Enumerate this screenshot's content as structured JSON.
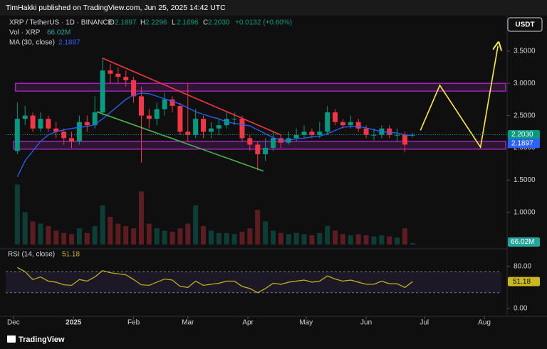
{
  "header": {
    "published": "TimHakki published on TradingView.com, Jun 25, 2025 14:42 UTC",
    "currency": "USDT",
    "brand": "TradingView"
  },
  "chart_data": {
    "type": "candlestick",
    "title": "XRP / TetherUS · 1D · BINANCE",
    "x": [
      "2024-12-03",
      "2024-12-07",
      "2024-12-11",
      "2024-12-15",
      "2024-12-19",
      "2024-12-23",
      "2024-12-27",
      "2024-12-31",
      "2025-01-04",
      "2025-01-08",
      "2025-01-12",
      "2025-01-16",
      "2025-01-20",
      "2025-01-24",
      "2025-01-28",
      "2025-02-01",
      "2025-02-05",
      "2025-02-09",
      "2025-02-13",
      "2025-02-17",
      "2025-02-21",
      "2025-02-25",
      "2025-03-01",
      "2025-03-05",
      "2025-03-09",
      "2025-03-13",
      "2025-03-17",
      "2025-03-21",
      "2025-03-25",
      "2025-03-29",
      "2025-04-02",
      "2025-04-06",
      "2025-04-10",
      "2025-04-14",
      "2025-04-18",
      "2025-04-22",
      "2025-04-26",
      "2025-04-30",
      "2025-05-04",
      "2025-05-08",
      "2025-05-12",
      "2025-05-16",
      "2025-05-20",
      "2025-05-24",
      "2025-05-28",
      "2025-06-01",
      "2025-06-05",
      "2025-06-09",
      "2025-06-13",
      "2025-06-17",
      "2025-06-21",
      "2025-06-25"
    ],
    "open": [
      1.95,
      2.45,
      2.5,
      2.3,
      2.45,
      2.3,
      2.25,
      2.15,
      2.1,
      2.4,
      2.35,
      2.55,
      3.2,
      3.15,
      3.1,
      3.05,
      2.8,
      2.5,
      2.45,
      2.6,
      2.75,
      2.65,
      2.25,
      2.2,
      2.45,
      2.25,
      2.3,
      2.35,
      2.45,
      2.45,
      2.15,
      2.05,
      1.9,
      2.0,
      2.15,
      2.08,
      2.15,
      2.2,
      2.25,
      2.2,
      2.25,
      2.55,
      2.4,
      2.35,
      2.4,
      2.3,
      2.2,
      2.2,
      2.3,
      2.2,
      2.2,
      2.1897
    ],
    "high": [
      2.7,
      2.65,
      2.55,
      2.55,
      2.5,
      2.4,
      2.3,
      2.25,
      2.5,
      2.5,
      2.8,
      3.4,
      3.3,
      3.25,
      3.2,
      3.1,
      2.95,
      2.6,
      2.7,
      2.85,
      2.8,
      2.7,
      3.0,
      2.6,
      2.5,
      2.4,
      2.45,
      2.55,
      2.55,
      2.5,
      2.2,
      2.1,
      2.15,
      2.25,
      2.2,
      2.25,
      2.3,
      2.35,
      2.3,
      2.4,
      2.65,
      2.6,
      2.45,
      2.5,
      2.45,
      2.35,
      2.3,
      2.35,
      2.35,
      2.3,
      2.25,
      2.2296
    ],
    "low": [
      1.9,
      2.35,
      2.25,
      2.25,
      2.25,
      2.15,
      2.05,
      2.0,
      2.05,
      2.25,
      2.3,
      2.5,
      3.0,
      3.0,
      2.95,
      2.7,
      1.77,
      2.3,
      2.35,
      2.5,
      2.55,
      2.2,
      2.1,
      2.15,
      2.15,
      2.15,
      2.2,
      2.3,
      2.35,
      2.1,
      1.95,
      1.65,
      1.8,
      1.95,
      2.0,
      2.05,
      2.1,
      2.15,
      2.15,
      2.15,
      2.2,
      2.35,
      2.3,
      2.3,
      2.25,
      2.15,
      2.12,
      2.15,
      2.15,
      2.1,
      1.93,
      2.1696
    ],
    "close": [
      2.45,
      2.5,
      2.3,
      2.45,
      2.3,
      2.25,
      2.15,
      2.1,
      2.4,
      2.35,
      2.55,
      3.2,
      3.15,
      3.1,
      3.05,
      2.8,
      2.5,
      2.45,
      2.6,
      2.75,
      2.65,
      2.25,
      2.2,
      2.45,
      2.25,
      2.3,
      2.35,
      2.45,
      2.45,
      2.15,
      2.05,
      1.9,
      2.0,
      2.15,
      2.08,
      2.15,
      2.2,
      2.25,
      2.2,
      2.25,
      2.55,
      2.4,
      2.35,
      2.4,
      2.3,
      2.2,
      2.2,
      2.3,
      2.2,
      2.2,
      2.05,
      2.203
    ],
    "ohlc_keys": [
      "O",
      "H",
      "L",
      "C"
    ],
    "last_labels": {
      "open": "2.1897",
      "high": "2.2296",
      "low": "2.1696",
      "close": "2.2030",
      "change": "+0.0132 (+0.60%)"
    },
    "up_color": "#089981",
    "down_color": "#f23645",
    "series": [
      {
        "name": "MA (30, close)",
        "color": "#2962ff",
        "values": [
          1.55,
          1.8,
          1.95,
          2.1,
          2.2,
          2.25,
          2.28,
          2.3,
          2.32,
          2.33,
          2.36,
          2.45,
          2.55,
          2.65,
          2.75,
          2.82,
          2.85,
          2.84,
          2.8,
          2.76,
          2.72,
          2.68,
          2.62,
          2.56,
          2.52,
          2.48,
          2.45,
          2.4,
          2.38,
          2.36,
          2.34,
          2.28,
          2.22,
          2.16,
          2.12,
          2.12,
          2.14,
          2.15,
          2.17,
          2.18,
          2.22,
          2.27,
          2.32,
          2.33,
          2.33,
          2.31,
          2.28,
          2.25,
          2.24,
          2.23,
          2.2,
          2.1897
        ]
      }
    ],
    "volume": {
      "name": "Vol · XRP",
      "values": [
        2600,
        1400,
        1000,
        900,
        800,
        600,
        500,
        450,
        700,
        500,
        800,
        1700,
        1200,
        900,
        800,
        700,
        2300,
        900,
        700,
        600,
        550,
        700,
        900,
        1700,
        800,
        600,
        500,
        500,
        450,
        550,
        700,
        1500,
        1000,
        600,
        500,
        450,
        500,
        450,
        400,
        500,
        800,
        600,
        450,
        400,
        450,
        400,
        350,
        400,
        350,
        300,
        700,
        66.02
      ],
      "lim": [
        0,
        4000
      ],
      "last_label": "66.02M"
    },
    "rsi": {
      "name": "RSI (14, close)",
      "color": "#c9b91f",
      "values": [
        78,
        70,
        55,
        60,
        52,
        50,
        45,
        44,
        55,
        52,
        60,
        72,
        68,
        66,
        64,
        55,
        45,
        44,
        50,
        56,
        54,
        42,
        40,
        52,
        44,
        46,
        48,
        52,
        52,
        42,
        38,
        30,
        38,
        48,
        46,
        50,
        52,
        54,
        50,
        52,
        62,
        56,
        52,
        54,
        50,
        46,
        46,
        52,
        47,
        47,
        40,
        51.18
      ],
      "ylim": [
        -15,
        115
      ],
      "yticks": [
        {
          "value": 80,
          "label": "80.00"
        },
        {
          "value": 0,
          "label": "0.00"
        }
      ],
      "bands": [
        30,
        70
      ]
    },
    "xlim": [
      "2024-11-27",
      "2025-08-12"
    ],
    "xticks": [
      {
        "value": "2024-12-01",
        "label": "Dec"
      },
      {
        "value": "2025-01-01",
        "label": "2025"
      },
      {
        "value": "2025-02-01",
        "label": "Feb"
      },
      {
        "value": "2025-03-01",
        "label": "Mar"
      },
      {
        "value": "2025-04-01",
        "label": "Apr"
      },
      {
        "value": "2025-05-01",
        "label": "May"
      },
      {
        "value": "2025-06-01",
        "label": "Jun"
      },
      {
        "value": "2025-07-01",
        "label": "Jul"
      },
      {
        "value": "2025-08-01",
        "label": "Aug"
      }
    ],
    "ylim": [
      0.5,
      4.0
    ],
    "yticks": [
      {
        "value": 1.0,
        "label": "1.0000"
      },
      {
        "value": 1.5,
        "label": "1.5000"
      },
      {
        "value": 2.0,
        "label": "2.0000"
      },
      {
        "value": 2.5,
        "label": "2.5000"
      },
      {
        "value": 3.0,
        "label": "3.0000"
      },
      {
        "value": 3.5,
        "label": "3.5000"
      }
    ],
    "annotations": {
      "zones": [
        {
          "from": "2024-12-02",
          "to": "2025-08-12",
          "low": 2.88,
          "high": 3.0,
          "color": "#9c27b0"
        },
        {
          "from": "2024-12-01",
          "to": "2025-08-12",
          "low": 1.98,
          "high": 2.1,
          "color": "#9c27b0"
        }
      ],
      "lines": [
        {
          "color": "#f23645",
          "points": [
            [
              "2025-01-16",
              3.39
            ],
            [
              "2025-04-18",
              2.2
            ]
          ]
        },
        {
          "color": "#4caf50",
          "points": [
            [
              "2025-01-13",
              2.56
            ],
            [
              "2025-04-09",
              1.64
            ]
          ]
        },
        {
          "color": "#ffeb3b",
          "arrow": true,
          "points": [
            [
              "2025-06-29",
              2.27
            ],
            [
              "2025-07-09",
              2.97
            ],
            [
              "2025-07-30",
              2.01
            ],
            [
              "2025-08-08",
              3.58
            ]
          ]
        }
      ]
    }
  }
}
